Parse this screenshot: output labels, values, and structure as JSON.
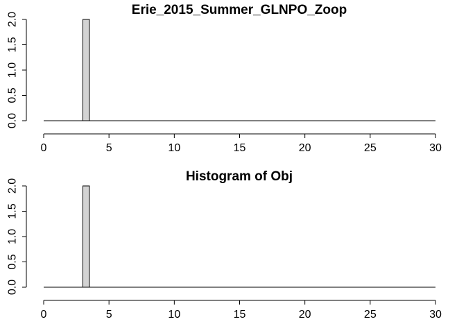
{
  "chart_data": [
    {
      "type": "bar",
      "title": "Erie_2015_Summer_GLNPO_Zoop",
      "xlabel": "",
      "ylabel": "",
      "xlim": [
        0,
        30
      ],
      "ylim": [
        0,
        2
      ],
      "xticks": [
        0,
        5,
        10,
        15,
        20,
        25,
        30
      ],
      "yticks": [
        0,
        0.5,
        1,
        1.5,
        2
      ],
      "ytick_labels": [
        "0.0",
        "0.5",
        "1.0",
        "1.5",
        "2.0"
      ],
      "bins": [
        {
          "start": 3.0,
          "end": 3.5,
          "value": 2
        }
      ],
      "baseline_range": [
        0,
        30
      ],
      "grid": false,
      "bar_color": "#d3d3d3"
    },
    {
      "type": "bar",
      "title": "Histogram of Obj",
      "xlabel": "",
      "ylabel": "",
      "xlim": [
        0,
        30
      ],
      "ylim": [
        0,
        2
      ],
      "xticks": [
        0,
        5,
        10,
        15,
        20,
        25,
        30
      ],
      "yticks": [
        0,
        0.5,
        1,
        1.5,
        2
      ],
      "ytick_labels": [
        "0.0",
        "0.5",
        "1.0",
        "1.5",
        "2.0"
      ],
      "bins": [
        {
          "start": 3.0,
          "end": 3.5,
          "value": 2
        }
      ],
      "baseline_range": [
        0,
        30
      ],
      "grid": false,
      "bar_color": "#d3d3d3"
    }
  ]
}
